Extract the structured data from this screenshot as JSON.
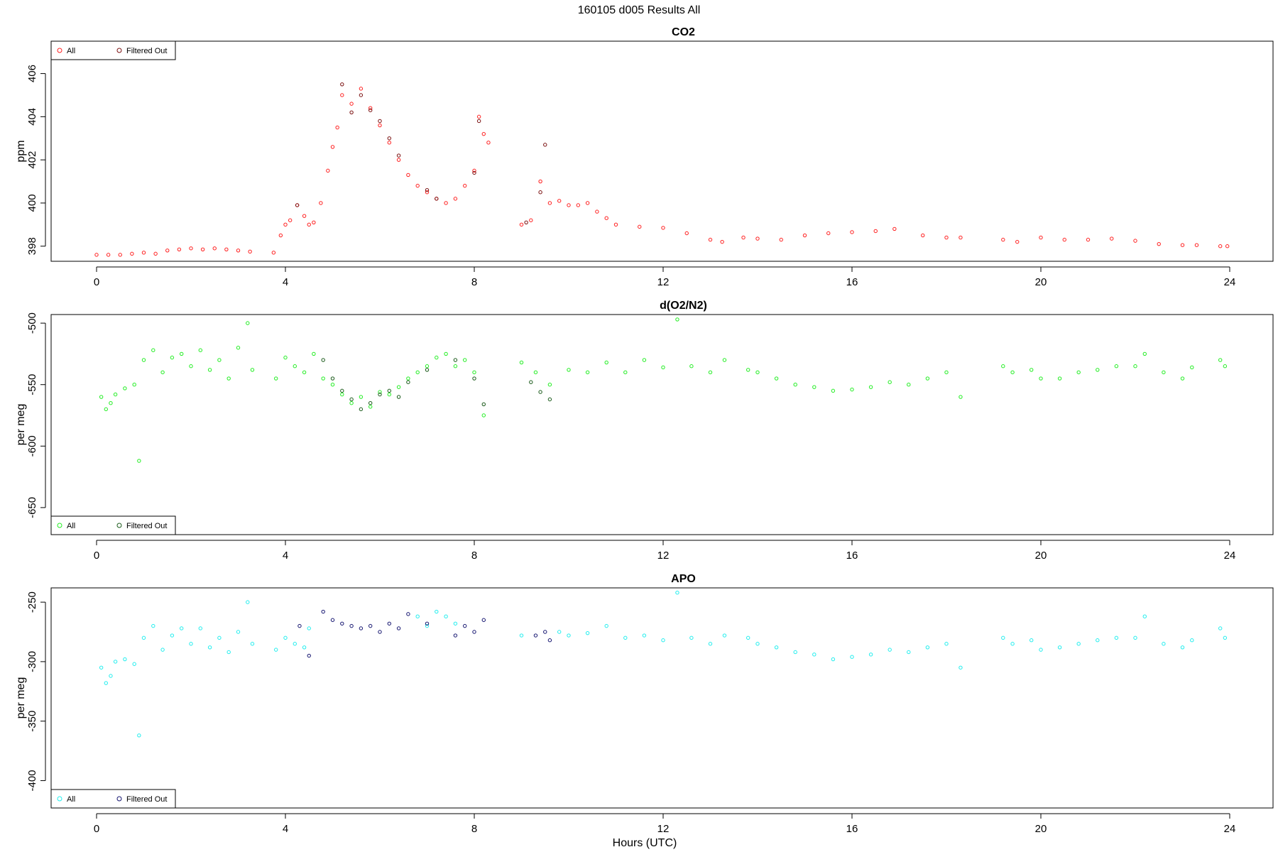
{
  "figure": {
    "title": "160105   d005   Results All",
    "xlabel": "Hours (UTC)"
  },
  "colors": {
    "co2_all": "#ff2020",
    "co2_filtered": "#7a1010",
    "o2_all": "#22ee22",
    "o2_filtered": "#1a5a1a",
    "apo_all": "#22eeee",
    "apo_filtered": "#151570",
    "frame": "#000000"
  },
  "chart_data": [
    {
      "type": "scatter",
      "title": "CO2",
      "ylabel": "ppm",
      "xlabel": "",
      "xlim": [
        0,
        24
      ],
      "ylim": [
        397.3,
        407.5
      ],
      "xticks": [
        0,
        4,
        8,
        12,
        16,
        20,
        24
      ],
      "yticks": [
        398,
        400,
        402,
        404,
        406
      ],
      "legend": {
        "position": "top-left",
        "entries": [
          "All",
          "Filtered Out"
        ]
      },
      "series": [
        {
          "name": "All",
          "x": [
            0.0,
            0.25,
            0.5,
            0.75,
            1.0,
            1.25,
            1.5,
            1.75,
            2.0,
            2.25,
            2.5,
            2.75,
            3.0,
            3.25,
            3.75,
            3.9,
            4.0,
            4.1,
            4.25,
            4.4,
            4.5,
            4.6,
            4.75,
            4.9,
            5.0,
            5.1,
            5.2,
            5.4,
            5.6,
            5.8,
            6.0,
            6.2,
            6.4,
            6.6,
            6.8,
            7.0,
            7.2,
            7.4,
            7.6,
            7.8,
            8.0,
            8.1,
            8.2,
            8.3,
            9.0,
            9.2,
            9.4,
            9.6,
            9.8,
            10.0,
            10.2,
            10.4,
            10.6,
            10.8,
            11.0,
            11.5,
            12.0,
            12.5,
            13.0,
            13.25,
            13.7,
            14.0,
            14.5,
            15.0,
            15.5,
            16.0,
            16.5,
            16.9,
            17.5,
            18.0,
            18.3,
            19.2,
            19.5,
            20.0,
            20.5,
            21.0,
            21.5,
            22.0,
            22.5,
            23.0,
            23.3,
            23.8,
            23.95
          ],
          "y": [
            397.6,
            397.6,
            397.6,
            397.65,
            397.7,
            397.65,
            397.8,
            397.85,
            397.9,
            397.85,
            397.9,
            397.85,
            397.8,
            397.75,
            397.7,
            398.5,
            399.0,
            399.2,
            399.9,
            399.4,
            399.0,
            399.1,
            400.0,
            401.5,
            402.6,
            403.5,
            405.0,
            404.6,
            405.3,
            404.4,
            403.6,
            402.8,
            402.0,
            401.3,
            400.8,
            400.5,
            400.2,
            400.0,
            400.2,
            400.8,
            401.5,
            404.0,
            403.2,
            402.8,
            399.0,
            399.2,
            401.0,
            400.0,
            400.1,
            399.9,
            399.9,
            400.0,
            399.6,
            399.3,
            399.0,
            398.9,
            398.85,
            398.6,
            398.3,
            398.2,
            398.4,
            398.35,
            398.3,
            398.5,
            398.6,
            398.65,
            398.7,
            398.8,
            398.5,
            398.4,
            398.4,
            398.3,
            398.2,
            398.4,
            398.3,
            398.3,
            398.35,
            398.25,
            398.1,
            398.05,
            398.05,
            398.0,
            398.0
          ]
        },
        {
          "name": "Filtered Out",
          "x": [
            4.25,
            5.2,
            5.4,
            5.6,
            5.8,
            6.0,
            6.2,
            6.4,
            7.0,
            7.2,
            8.0,
            8.1,
            9.1,
            9.4,
            9.5
          ],
          "y": [
            399.9,
            405.5,
            404.2,
            405.0,
            404.3,
            403.8,
            403.0,
            402.2,
            400.6,
            400.2,
            401.4,
            403.8,
            399.1,
            400.5,
            402.7
          ]
        }
      ]
    },
    {
      "type": "scatter",
      "title": "d(O2/N2)",
      "ylabel": "per meg",
      "xlabel": "",
      "xlim": [
        0,
        24
      ],
      "ylim": [
        -672,
        -493
      ],
      "xticks": [
        0,
        4,
        8,
        12,
        16,
        20,
        24
      ],
      "yticks": [
        -500,
        -550,
        -600,
        -650
      ],
      "legend": {
        "position": "bottom-left",
        "entries": [
          "All",
          "Filtered Out"
        ]
      },
      "series": [
        {
          "name": "All",
          "x": [
            0.1,
            0.2,
            0.3,
            0.4,
            0.6,
            0.8,
            0.9,
            1.0,
            1.2,
            1.4,
            1.6,
            1.8,
            2.0,
            2.2,
            2.4,
            2.6,
            2.8,
            3.0,
            3.2,
            3.3,
            3.8,
            4.0,
            4.2,
            4.4,
            4.6,
            4.8,
            5.0,
            5.2,
            5.4,
            5.6,
            5.8,
            6.0,
            6.2,
            6.4,
            6.6,
            6.8,
            7.0,
            7.2,
            7.4,
            7.6,
            7.8,
            8.0,
            8.2,
            9.0,
            9.3,
            9.6,
            10.0,
            10.4,
            10.8,
            11.2,
            11.6,
            12.0,
            12.3,
            12.6,
            13.0,
            13.3,
            13.8,
            14.0,
            14.4,
            14.8,
            15.2,
            15.6,
            16.0,
            16.4,
            16.8,
            17.2,
            17.6,
            18.0,
            18.3,
            19.2,
            19.4,
            19.8,
            20.0,
            20.4,
            20.8,
            21.2,
            21.6,
            22.0,
            22.2,
            22.6,
            23.0,
            23.2,
            23.8,
            23.9
          ],
          "y": [
            -560,
            -570,
            -565,
            -558,
            -553,
            -550,
            -612,
            -530,
            -522,
            -540,
            -528,
            -525,
            -535,
            -522,
            -538,
            -530,
            -545,
            -520,
            -500,
            -538,
            -545,
            -528,
            -535,
            -540,
            -525,
            -545,
            -550,
            -558,
            -565,
            -560,
            -568,
            -556,
            -558,
            -552,
            -545,
            -540,
            -535,
            -528,
            -525,
            -535,
            -530,
            -540,
            -575,
            -532,
            -540,
            -550,
            -538,
            -540,
            -532,
            -540,
            -530,
            -536,
            -497,
            -535,
            -540,
            -530,
            -538,
            -540,
            -545,
            -550,
            -552,
            -555,
            -554,
            -552,
            -548,
            -550,
            -545,
            -540,
            -560,
            -535,
            -540,
            -538,
            -545,
            -545,
            -540,
            -538,
            -535,
            -535,
            -525,
            -540,
            -545,
            -536,
            -530,
            -535
          ]
        },
        {
          "name": "Filtered Out",
          "x": [
            4.8,
            5.0,
            5.2,
            5.4,
            5.6,
            5.8,
            6.0,
            6.2,
            6.4,
            6.6,
            7.0,
            7.6,
            8.0,
            8.2,
            9.2,
            9.4,
            9.6
          ],
          "y": [
            -530,
            -545,
            -555,
            -562,
            -570,
            -565,
            -558,
            -555,
            -560,
            -548,
            -538,
            -530,
            -545,
            -566,
            -548,
            -556,
            -562
          ]
        }
      ]
    },
    {
      "type": "scatter",
      "title": "APO",
      "ylabel": "per meg",
      "xlabel": "Hours (UTC)",
      "xlim": [
        0,
        24
      ],
      "ylim": [
        -423,
        -238
      ],
      "xticks": [
        0,
        4,
        8,
        12,
        16,
        20,
        24
      ],
      "yticks": [
        -250,
        -300,
        -350,
        -400
      ],
      "legend": {
        "position": "bottom-left",
        "entries": [
          "All",
          "Filtered Out"
        ]
      },
      "series": [
        {
          "name": "All",
          "x": [
            0.1,
            0.2,
            0.3,
            0.4,
            0.6,
            0.8,
            0.9,
            1.0,
            1.2,
            1.4,
            1.6,
            1.8,
            2.0,
            2.2,
            2.4,
            2.6,
            2.8,
            3.0,
            3.2,
            3.3,
            3.8,
            4.0,
            4.2,
            4.4,
            4.5,
            6.8,
            7.0,
            7.2,
            7.4,
            7.6,
            9.0,
            9.8,
            10.0,
            10.4,
            10.8,
            11.2,
            11.6,
            12.0,
            12.3,
            12.6,
            13.0,
            13.3,
            13.8,
            14.0,
            14.4,
            14.8,
            15.2,
            15.6,
            16.0,
            16.4,
            16.8,
            17.2,
            17.6,
            18.0,
            18.3,
            19.2,
            19.4,
            19.8,
            20.0,
            20.4,
            20.8,
            21.2,
            21.6,
            22.0,
            22.2,
            22.6,
            23.0,
            23.2,
            23.8,
            23.9
          ],
          "y": [
            -305,
            -318,
            -312,
            -300,
            -298,
            -302,
            -362,
            -280,
            -270,
            -290,
            -278,
            -272,
            -285,
            -272,
            -288,
            -280,
            -292,
            -275,
            -250,
            -285,
            -290,
            -280,
            -285,
            -288,
            -272,
            -262,
            -270,
            -258,
            -262,
            -268,
            -278,
            -275,
            -278,
            -276,
            -270,
            -280,
            -278,
            -282,
            -242,
            -280,
            -285,
            -278,
            -280,
            -285,
            -288,
            -292,
            -294,
            -298,
            -296,
            -294,
            -290,
            -292,
            -288,
            -285,
            -305,
            -280,
            -285,
            -282,
            -290,
            -288,
            -285,
            -282,
            -280,
            -280,
            -262,
            -285,
            -288,
            -282,
            -272,
            -280
          ]
        },
        {
          "name": "Filtered Out",
          "x": [
            4.3,
            4.5,
            4.8,
            5.0,
            5.2,
            5.4,
            5.6,
            5.8,
            6.0,
            6.2,
            6.4,
            6.6,
            7.0,
            7.6,
            7.8,
            8.0,
            8.2,
            9.3,
            9.5,
            9.6
          ],
          "y": [
            -270,
            -295,
            -258,
            -265,
            -268,
            -270,
            -272,
            -270,
            -275,
            -268,
            -272,
            -260,
            -268,
            -278,
            -270,
            -275,
            -265,
            -278,
            -275,
            -282
          ]
        }
      ]
    }
  ]
}
